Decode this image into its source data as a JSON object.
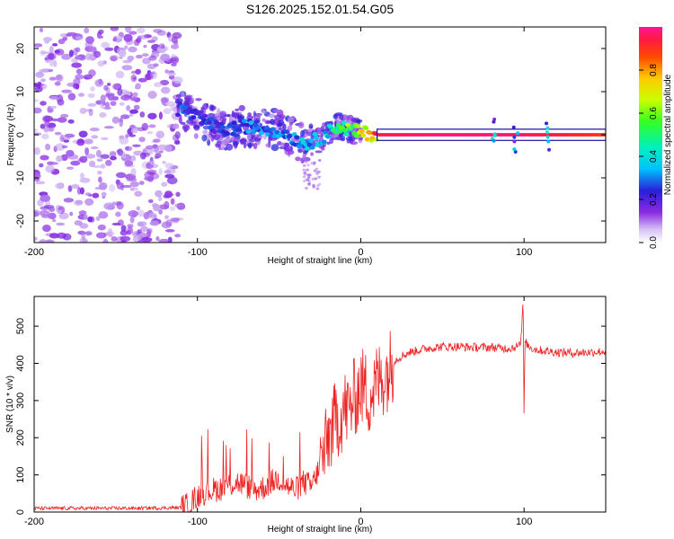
{
  "title": "S126.2025.152.01.54.G05",
  "colorbar": {
    "label": "Normalized spectral amplitude",
    "ticks": [
      "0.0",
      "0.2",
      "0.4",
      "0.6",
      "0.8"
    ],
    "tick_values": [
      0.0,
      0.2,
      0.4,
      0.6,
      0.8
    ],
    "range": [
      0,
      1
    ]
  },
  "colors": {
    "snr_line": "#ee2222",
    "frame": "#000000",
    "scatter_base": "#7b1fe6",
    "scatter_light": "#c8aaf2"
  },
  "chart_data": [
    {
      "type": "heatmap",
      "xlabel": "Height of straight line (km)",
      "ylabel": "Frequency (Hz)",
      "xlim": [
        -200,
        150
      ],
      "ylim": [
        -25,
        25
      ],
      "x_ticks": [
        -200,
        -100,
        0,
        100
      ],
      "y_ticks": [
        -20,
        -10,
        0,
        10,
        20
      ],
      "x_tick_labels": [
        "-200",
        "-100",
        "0",
        "100"
      ],
      "y_tick_labels": [
        "-20",
        "-10",
        "0",
        "10",
        "20"
      ],
      "grid": false,
      "description_series": {
        "noise_region_x": [
          -200,
          -110
        ],
        "ridge_x": [
          -110,
          -85,
          -70,
          -50,
          -35,
          -25,
          -15,
          -5,
          0,
          10,
          50,
          100,
          150
        ],
        "ridge_freq_hz": [
          6,
          1,
          2,
          1,
          -2,
          -1,
          2,
          1,
          0.5,
          0,
          0,
          0,
          0
        ],
        "ridge_amplitude": [
          0.3,
          0.3,
          0.35,
          0.35,
          0.4,
          0.45,
          0.55,
          0.7,
          0.85,
          0.95,
          0.98,
          0.97,
          0.9
        ]
      }
    },
    {
      "type": "line",
      "xlabel": "Height of straight line (km)",
      "ylabel": "SNR (10 * v/v)",
      "xlim": [
        -200,
        150
      ],
      "ylim": [
        0,
        580
      ],
      "x_ticks": [
        -200,
        -100,
        0,
        100
      ],
      "y_ticks": [
        0,
        100,
        200,
        300,
        400,
        500
      ],
      "x_tick_labels": [
        "-200",
        "-100",
        "0",
        "100"
      ],
      "y_tick_labels": [
        "0",
        "100",
        "200",
        "300",
        "400",
        "500"
      ],
      "grid": false,
      "series": [
        {
          "x": [
            -200,
            -180,
            -160,
            -140,
            -120,
            -110,
            -105,
            -100,
            -95,
            -90,
            -85,
            -80,
            -75,
            -70,
            -65,
            -60,
            -55,
            -50,
            -45,
            -40,
            -35,
            -30,
            -27,
            -25,
            -22,
            -20,
            -17,
            -15,
            -12,
            -10,
            -7,
            -5,
            -2,
            0,
            3,
            5,
            8,
            10,
            13,
            15,
            18,
            20,
            25,
            30,
            40,
            50,
            60,
            70,
            80,
            90,
            95,
            98,
            99.5,
            100,
            100.5,
            102,
            105,
            110,
            120,
            130,
            140,
            150
          ],
          "values": [
            10,
            10,
            10,
            10,
            11,
            12,
            20,
            45,
            55,
            60,
            65,
            75,
            80,
            70,
            60,
            65,
            80,
            90,
            70,
            60,
            80,
            70,
            100,
            130,
            160,
            200,
            230,
            250,
            260,
            280,
            270,
            300,
            320,
            340,
            330,
            310,
            330,
            350,
            360,
            370,
            390,
            405,
            420,
            430,
            440,
            445,
            445,
            443,
            443,
            440,
            445,
            450,
            580,
            230,
            460,
            450,
            440,
            435,
            430,
            428,
            430,
            432
          ]
        }
      ]
    }
  ]
}
